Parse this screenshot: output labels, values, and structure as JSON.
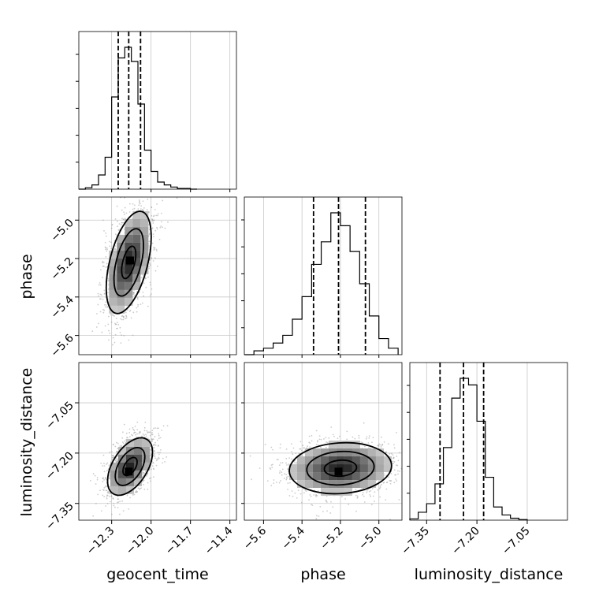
{
  "chart_data": {
    "type": "corner",
    "parameters": [
      "geocent_time",
      "phase",
      "luminosity_distance"
    ],
    "axis_labels": {
      "x": [
        "geocent_time",
        "phase",
        "luminosity_distance"
      ],
      "y": [
        "",
        "phase",
        "luminosity_distance"
      ]
    },
    "ranges": {
      "geocent_time": [
        -12.55,
        -11.35
      ],
      "phase": [
        -5.7,
        -4.88
      ],
      "luminosity_distance": [
        -7.4,
        -6.93
      ]
    },
    "ticks": {
      "geocent_time": [
        -12.3,
        -12.0,
        -11.7,
        -11.4
      ],
      "phase": [
        -5.6,
        -5.4,
        -5.2,
        -5.0
      ],
      "luminosity_distance": [
        -7.35,
        -7.2,
        -7.05
      ]
    },
    "tick_labels": {
      "geocent_time": [
        "−12.3",
        "−12.0",
        "−11.7",
        "−11.4"
      ],
      "phase": [
        "−5.6",
        "−5.4",
        "−5.2",
        "−5.0"
      ],
      "luminosity_distance": [
        "−7.35",
        "−7.20",
        "−7.05"
      ]
    },
    "quantiles": {
      "geocent_time": [
        -12.25,
        -12.17,
        -12.08
      ],
      "phase": [
        -5.34,
        -5.21,
        -5.07
      ],
      "luminosity_distance": [
        -7.31,
        -7.24,
        -7.18
      ]
    },
    "histograms": {
      "geocent_time": {
        "bin_edges": [
          -12.55,
          -12.5,
          -12.45,
          -12.4,
          -12.35,
          -12.3,
          -12.25,
          -12.2,
          -12.15,
          -12.1,
          -12.05,
          -12.0,
          -11.95,
          -11.9,
          -11.85,
          -11.8,
          -11.75,
          -11.7,
          -11.65
        ],
        "counts": [
          0,
          2,
          6,
          20,
          45,
          130,
          185,
          200,
          180,
          120,
          55,
          25,
          10,
          6,
          3,
          1,
          1,
          0
        ]
      },
      "phase": {
        "bin_edges": [
          -5.7,
          -5.65,
          -5.6,
          -5.55,
          -5.5,
          -5.45,
          -5.4,
          -5.35,
          -5.3,
          -5.25,
          -5.2,
          -5.15,
          -5.1,
          -5.05,
          -5.0,
          -4.95,
          -4.9
        ],
        "counts": [
          0,
          6,
          10,
          18,
          30,
          55,
          90,
          140,
          175,
          220,
          200,
          160,
          110,
          60,
          25,
          10
        ]
      },
      "luminosity_distance": {
        "bin_edges": [
          -7.4,
          -7.375,
          -7.35,
          -7.325,
          -7.3,
          -7.275,
          -7.25,
          -7.225,
          -7.2,
          -7.175,
          -7.15,
          -7.125,
          -7.1,
          -7.075,
          -7.05
        ],
        "counts": [
          2,
          12,
          25,
          55,
          110,
          185,
          215,
          205,
          150,
          65,
          20,
          8,
          3,
          1
        ]
      }
    },
    "contours": {
      "phase_vs_geocent_time": {
        "center": [
          -12.17,
          -5.22
        ],
        "sigma": [
          0.09,
          0.14
        ],
        "corr": 0.5,
        "levels": [
          0.6,
          1.25,
          1.9
        ],
        "peak": [
          -12.16,
          -5.21
        ]
      },
      "luminosity_distance_vs_geocent_time": {
        "center": [
          -12.16,
          -7.24
        ],
        "sigma": [
          0.09,
          0.045
        ],
        "corr": 0.5,
        "levels": [
          0.6,
          1.25,
          1.9
        ],
        "peak": [
          -12.17,
          -7.255
        ]
      },
      "luminosity_distance_vs_phase": {
        "center": [
          -5.2,
          -7.245
        ],
        "sigma": [
          0.14,
          0.04
        ],
        "corr": 0.1,
        "levels": [
          0.6,
          1.25,
          1.9
        ],
        "peak": [
          -5.21,
          -7.255
        ]
      }
    },
    "grid": true
  }
}
